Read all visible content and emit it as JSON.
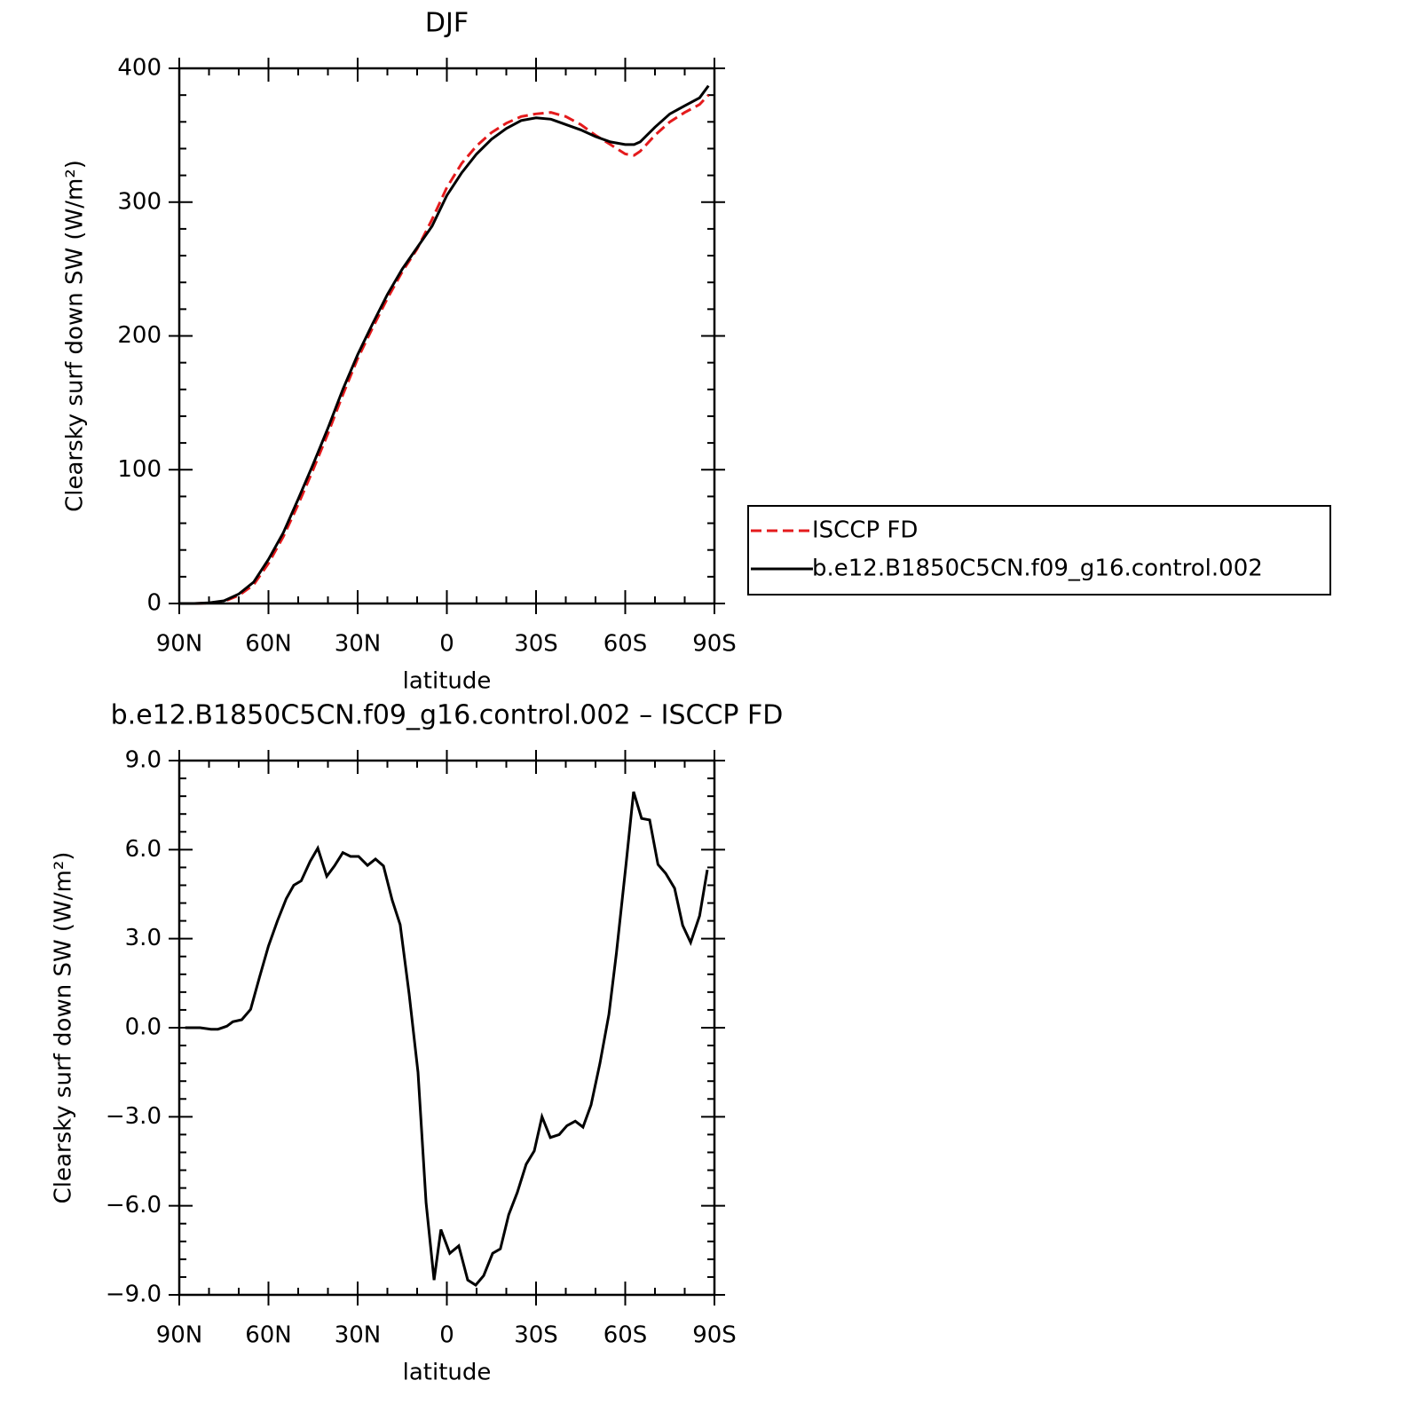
{
  "chart_data": [
    {
      "type": "line",
      "title": "DJF",
      "x_label": "latitude",
      "y_label": "Clearsky surf down SW (W/m²)",
      "x": [
        90,
        85,
        80,
        75,
        70,
        65,
        60,
        55,
        50,
        45,
        40,
        35,
        30,
        25,
        20,
        15,
        10,
        5,
        0,
        -5,
        -10,
        -15,
        -20,
        -25,
        -30,
        -35,
        -40,
        -45,
        -50,
        -55,
        -60,
        -63,
        -65,
        -70,
        -75,
        -80,
        -85,
        -88
      ],
      "series": [
        {
          "name": "ISCCP FD",
          "color": "#e41a1c",
          "style": "dashed",
          "values": [
            0,
            0,
            0.3,
            1.5,
            6,
            14,
            30,
            50,
            74,
            100,
            127,
            156,
            183,
            206,
            228,
            248,
            265,
            287,
            311,
            329,
            342,
            352,
            359,
            364,
            366,
            367,
            364,
            358,
            350,
            343,
            336,
            335,
            338,
            350,
            360,
            367,
            373,
            380
          ]
        },
        {
          "name": "b.e12.B1850C5CN.f09_g16.control.002",
          "color": "#000000",
          "style": "solid",
          "values": [
            0,
            0,
            0.5,
            2,
            7,
            16,
            33,
            53,
            78,
            104,
            131,
            160,
            186,
            209,
            231,
            250,
            266,
            282,
            305,
            322,
            336,
            347,
            355,
            361,
            363,
            362,
            358,
            354,
            349,
            345,
            343,
            343,
            345,
            356,
            366,
            372,
            378,
            387
          ]
        }
      ],
      "xlim": [
        90,
        -90
      ],
      "xticks": [
        {
          "value": 90,
          "label": "90N"
        },
        {
          "value": 60,
          "label": "60N"
        },
        {
          "value": 30,
          "label": "30N"
        },
        0,
        {
          "value": -30,
          "label": "30S"
        },
        {
          "value": -60,
          "label": "60S"
        },
        {
          "value": -90,
          "label": "90S"
        }
      ],
      "ylim": [
        0,
        400
      ],
      "yticks": [
        0,
        100,
        200,
        300,
        400
      ],
      "legend": "right"
    },
    {
      "type": "line",
      "title": "b.e12.B1850C5CN.f09_g16.control.002 – ISCCP FD",
      "x_label": "latitude",
      "y_label": "Clearsky surf down SW (W/m²)",
      "x": [
        88,
        83,
        79.3,
        77,
        74,
        72,
        69,
        66,
        63,
        60,
        57,
        54,
        51.5,
        49,
        46,
        43.4,
        40.4,
        37.8,
        35,
        32.4,
        29.7,
        26.7,
        24,
        21.3,
        18.4,
        15.7,
        12.7,
        9.7,
        7,
        4.3,
        2,
        -1,
        -4,
        -7,
        -9.7,
        -12.4,
        -15.4,
        -18,
        -20.8,
        -23.7,
        -26.7,
        -29.4,
        -32,
        -34.8,
        -37.8,
        -40.4,
        -43.2,
        -45.8,
        -48.5,
        -51.5,
        -54.5,
        -57,
        -60.2,
        -62.8,
        -65.5,
        -68.2,
        -71,
        -73.6,
        -76.6,
        -79.3,
        -82,
        -85,
        -87.6
      ],
      "series": [
        {
          "name": "difference",
          "color": "#000000",
          "style": "solid",
          "values": [
            0,
            0,
            -0.05,
            -0.05,
            0.05,
            0.2,
            0.27,
            0.62,
            1.7,
            2.75,
            3.6,
            4.35,
            4.8,
            4.95,
            5.6,
            6.05,
            5.1,
            5.45,
            5.9,
            5.77,
            5.77,
            5.47,
            5.68,
            5.45,
            4.3,
            3.47,
            1.14,
            -1.5,
            -5.9,
            -8.5,
            -6.8,
            -7.6,
            -7.35,
            -8.5,
            -8.67,
            -8.35,
            -7.6,
            -7.45,
            -6.3,
            -5.55,
            -4.6,
            -4.15,
            -3,
            -3.7,
            -3.6,
            -3.3,
            -3.15,
            -3.35,
            -2.6,
            -1.2,
            0.45,
            2.5,
            5.45,
            7.95,
            7.05,
            7,
            5.5,
            5.2,
            4.7,
            3.45,
            2.87,
            3.77,
            5.32
          ]
        }
      ],
      "xlim": [
        90,
        -90
      ],
      "xticks": [
        {
          "value": 90,
          "label": "90N"
        },
        {
          "value": 60,
          "label": "60N"
        },
        {
          "value": 30,
          "label": "30N"
        },
        0,
        {
          "value": -30,
          "label": "30S"
        },
        {
          "value": -60,
          "label": "60S"
        },
        {
          "value": -90,
          "label": "90S"
        }
      ],
      "ylim": [
        -9,
        9
      ],
      "yticks": [
        {
          "value": -9,
          "label": "−9.0"
        },
        {
          "value": -6,
          "label": "−6.0"
        },
        {
          "value": -3,
          "label": "−3.0"
        },
        {
          "value": 0,
          "label": "0.0"
        },
        {
          "value": 3,
          "label": "3.0"
        },
        {
          "value": 6,
          "label": "6.0"
        },
        {
          "value": 9,
          "label": "9.0"
        }
      ]
    }
  ]
}
